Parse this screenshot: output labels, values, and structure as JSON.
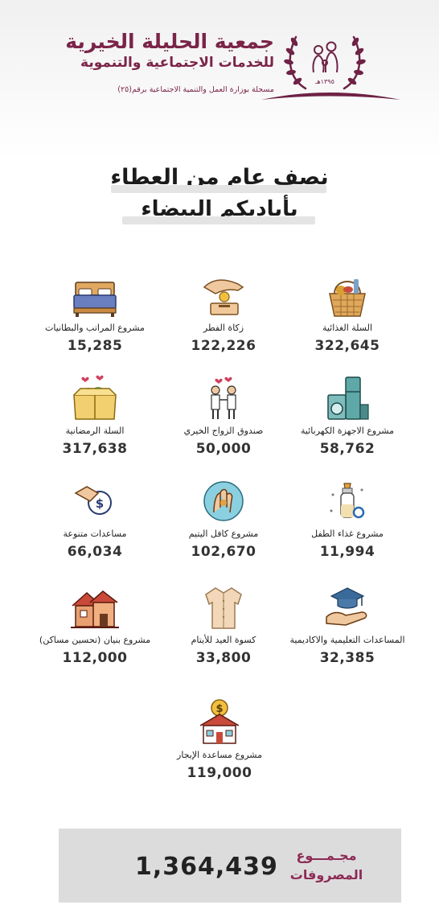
{
  "header": {
    "org_name": "جمعية الحليلة الخيرية",
    "org_subtitle": "للخدمات الاجتماعية والتنموية",
    "registration": "مسجلة بوزارة العمل والتنمية الاجتماعية برقم(٢٥)",
    "logo_year": "١٣٩٥هـ"
  },
  "headline": {
    "line1": "نصف عام من العطاء",
    "line2": "بأياديكم البيضاء"
  },
  "colors": {
    "brand": "#7a2448",
    "total_label": "#8c2a55",
    "total_box": "#dcdcdc"
  },
  "items": [
    {
      "label": "السلة الغذائية",
      "value": "322,645",
      "icon": "food-basket-icon"
    },
    {
      "label": "زكاة الفطر",
      "value": "122,226",
      "icon": "charity-hand-icon"
    },
    {
      "label": "مشروع المراتب والبطانيات",
      "value": "15,285",
      "icon": "bed-icon"
    },
    {
      "label": "مشروع الاجهزة الكهربائية",
      "value": "58,762",
      "icon": "appliances-icon"
    },
    {
      "label": "صندوق الزواج الخيري",
      "value": "50,000",
      "icon": "couple-icon"
    },
    {
      "label": "السلة الرمضانية",
      "value": "317,638",
      "icon": "ramadan-box-icon"
    },
    {
      "label": "مشروع غذاء الطفل",
      "value": "11,994",
      "icon": "baby-bottle-icon"
    },
    {
      "label": "مشروع كافل اليتيم",
      "value": "102,670",
      "icon": "orphan-care-icon"
    },
    {
      "label": "مساعدات متنوعة",
      "value": "66,034",
      "icon": "money-hand-icon"
    },
    {
      "label": "المساعدات التعليمية والاكاديمية",
      "value": "32,385",
      "icon": "graduation-cap-icon"
    },
    {
      "label": "كسوة العيد للأيتام",
      "value": "33,800",
      "icon": "shirt-icon"
    },
    {
      "label": "مشروع بنيان (تحسين مساكن)",
      "value": "112,000",
      "icon": "houses-icon"
    },
    {
      "label": "مشروع مساعدة الإيجار",
      "value": "119,000",
      "icon": "rent-house-icon"
    }
  ],
  "total": {
    "label_line1": "مجـمـــوع",
    "label_line2": "المصروفات",
    "value": "1,364,439"
  }
}
